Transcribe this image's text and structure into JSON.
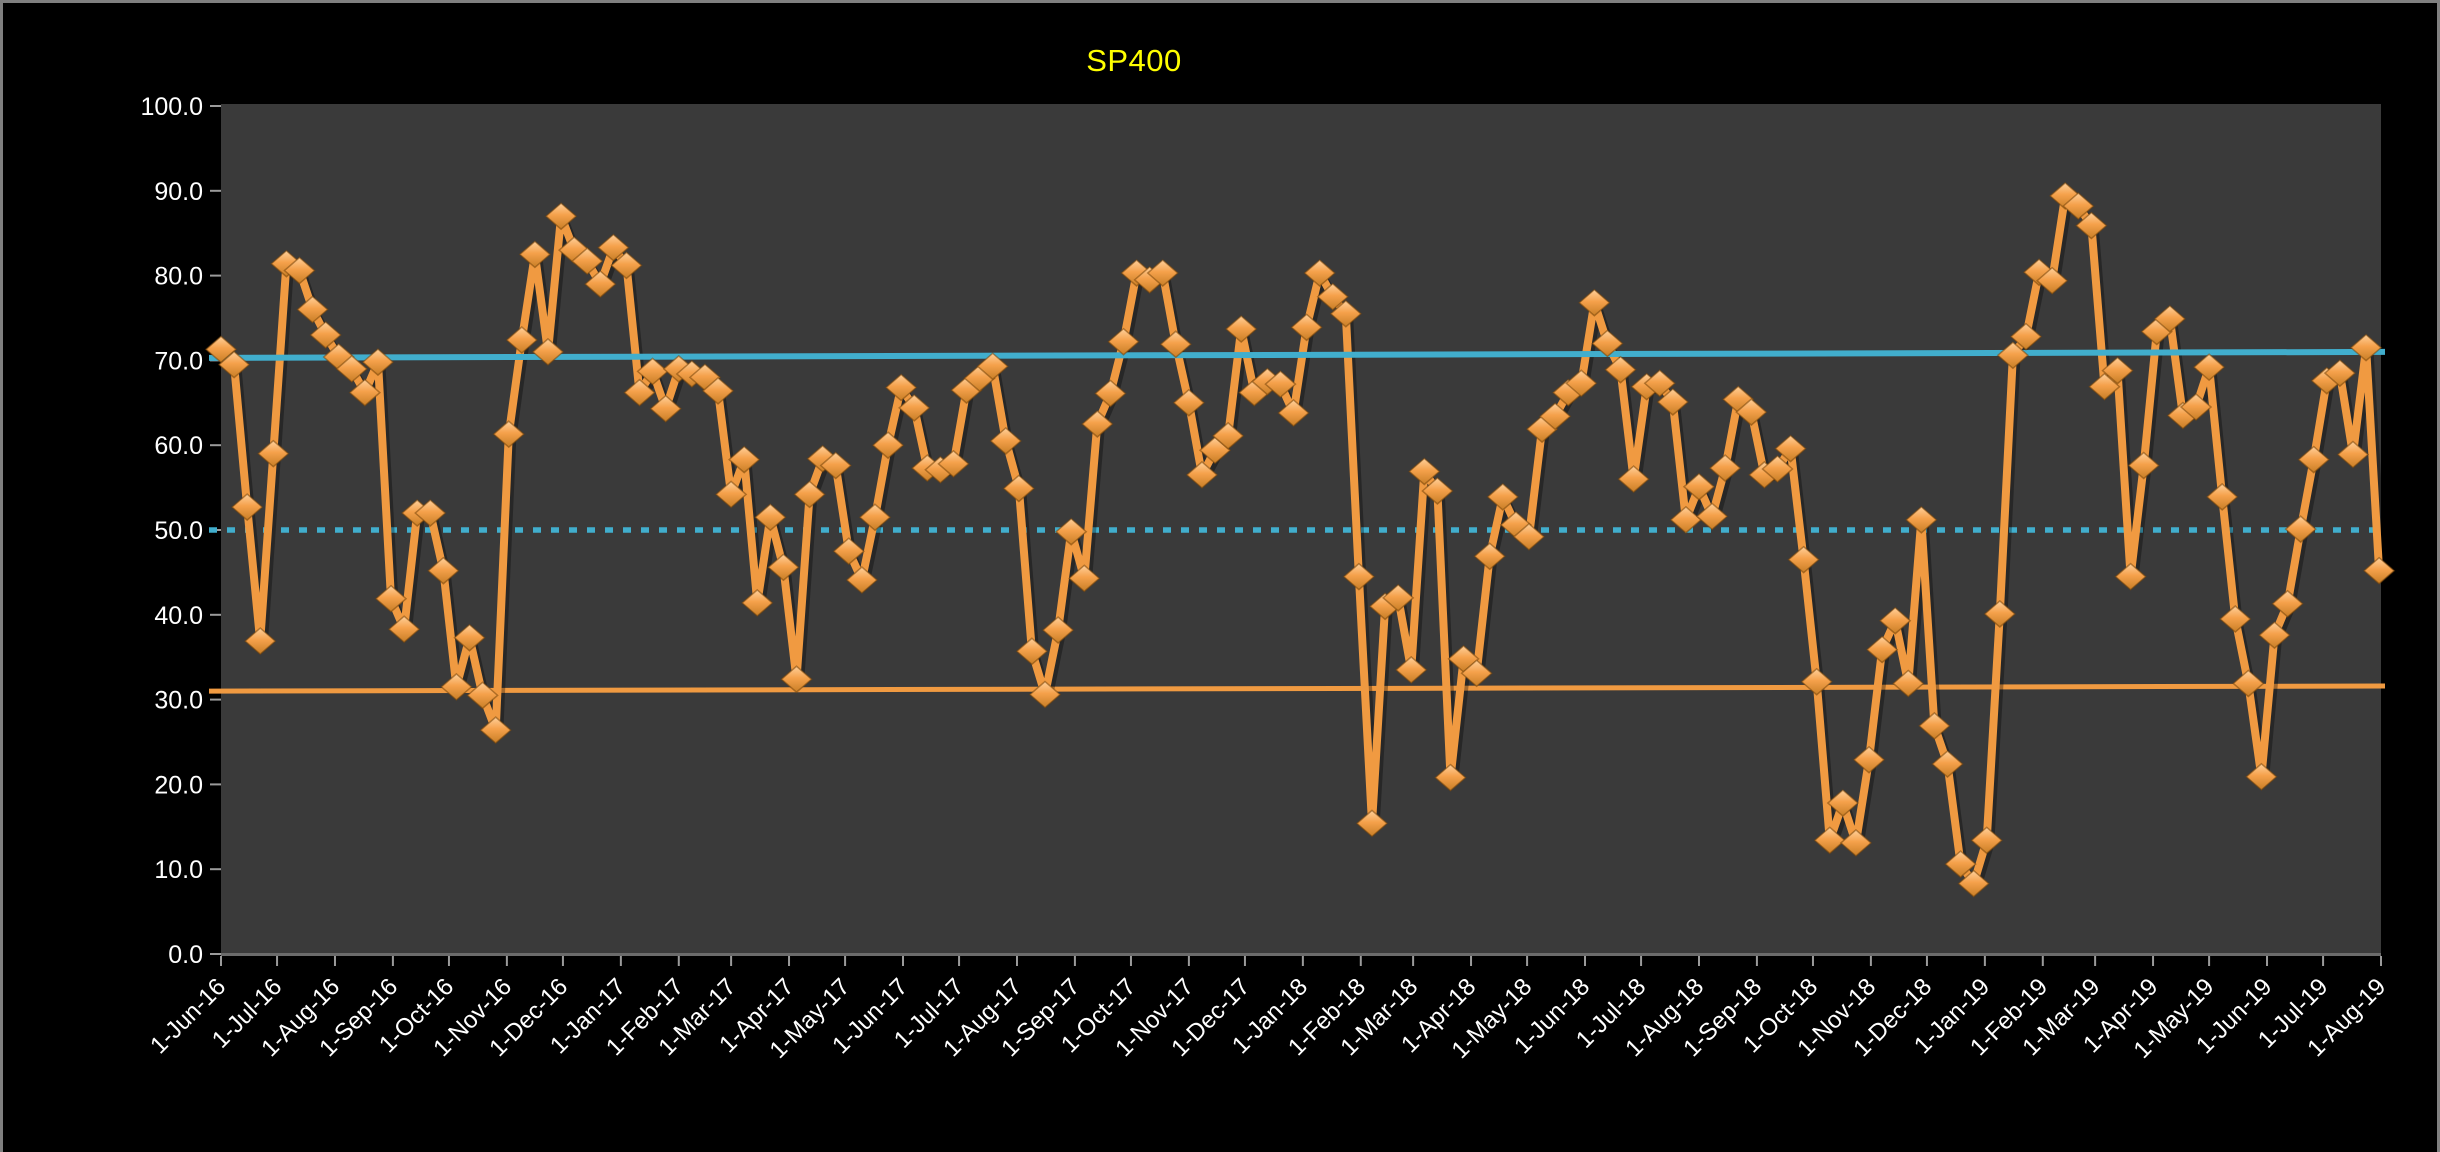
{
  "chart_data": {
    "type": "line",
    "title": "SP400",
    "title_color": "#FFFF00",
    "background_color": "#000000",
    "plot_background_color": "#3A3A3A",
    "axis_text_color": "#FFFFFF",
    "tick_mark_color": "#9B9B9B",
    "axis_line_color": "#6B6B6B",
    "grid": "off",
    "legend": "none",
    "ylim": [
      0,
      100
    ],
    "y_tick_interval": 10,
    "y_tick_labels": [
      "100.0",
      "90.0",
      "80.0",
      "70.0",
      "60.0",
      "50.0",
      "40.0",
      "30.0",
      "20.0",
      "10.0",
      "0.0"
    ],
    "x_unit": "weekly",
    "x_start": "1-Jun-16",
    "x_end": "1-Aug-19",
    "x_span_days": 1156,
    "x_tick_labels": [
      "1-Jun-16",
      "1-Jul-16",
      "1-Aug-16",
      "1-Sep-16",
      "1-Oct-16",
      "1-Nov-16",
      "1-Dec-16",
      "1-Jan-17",
      "1-Feb-17",
      "1-Mar-17",
      "1-Apr-17",
      "1-May-17",
      "1-Jun-17",
      "1-Jul-17",
      "1-Aug-17",
      "1-Sep-17",
      "1-Oct-17",
      "1-Nov-17",
      "1-Dec-17",
      "1-Jan-18",
      "1-Feb-18",
      "1-Mar-18",
      "1-Apr-18",
      "1-May-18",
      "1-Jun-18",
      "1-Jul-18",
      "1-Aug-18",
      "1-Sep-18",
      "1-Oct-18",
      "1-Nov-18",
      "1-Dec-18",
      "1-Jan-19",
      "1-Feb-19",
      "1-Mar-19",
      "1-Apr-19",
      "1-May-19",
      "1-Jun-19",
      "1-Jul-19",
      "1-Aug-19"
    ],
    "x_tick_day_offsets": [
      0,
      30,
      61,
      92,
      122,
      153,
      183,
      214,
      245,
      273,
      304,
      334,
      365,
      395,
      426,
      457,
      487,
      518,
      548,
      579,
      610,
      638,
      669,
      699,
      730,
      760,
      791,
      822,
      852,
      883,
      913,
      944,
      975,
      1003,
      1034,
      1064,
      1095,
      1125,
      1156
    ],
    "series": [
      {
        "name": "SP400",
        "color": "#F09A41",
        "marker": "diamond",
        "marker_colors": {
          "light": "#FFD09A",
          "mid": "#F5A14B",
          "dark": "#C87E26"
        },
        "values": [
          71.3,
          69.5,
          52.7,
          36.9,
          59.0,
          81.4,
          80.6,
          76.0,
          73.0,
          70.4,
          69.0,
          66.2,
          69.8,
          41.9,
          38.3,
          52.0,
          52.0,
          45.2,
          31.5,
          37.3,
          30.5,
          26.4,
          61.3,
          72.4,
          82.5,
          71.0,
          87.0,
          83.0,
          81.7,
          79.0,
          83.3,
          81.2,
          66.2,
          68.7,
          64.3,
          69.0,
          68.4,
          68.0,
          66.4,
          54.2,
          58.3,
          41.4,
          51.5,
          45.6,
          32.4,
          54.2,
          58.4,
          57.6,
          47.5,
          44.1,
          51.5,
          60.0,
          66.8,
          64.4,
          57.3,
          57.1,
          57.8,
          66.5,
          67.9,
          69.3,
          60.5,
          54.9,
          35.7,
          30.6,
          38.2,
          49.8,
          44.3,
          62.5,
          66.1,
          72.2,
          80.3,
          79.5,
          80.3,
          71.9,
          65.0,
          56.5,
          59.4,
          61.1,
          73.7,
          66.2,
          67.5,
          67.2,
          63.8,
          73.9,
          80.3,
          77.5,
          75.5,
          44.5,
          15.4,
          41.0,
          42.0,
          33.5,
          56.9,
          54.6,
          20.8,
          34.8,
          33.1,
          46.9,
          53.9,
          50.6,
          49.2,
          61.9,
          63.4,
          66.2,
          67.3,
          76.8,
          72.0,
          68.9,
          56.0,
          66.9,
          67.3,
          65.1,
          51.2,
          55.1,
          51.6,
          57.3,
          65.4,
          63.9,
          56.5,
          57.2,
          59.6,
          46.5,
          32.1,
          13.4,
          17.8,
          13.1,
          22.9,
          35.9,
          39.3,
          31.9,
          51.2,
          26.9,
          22.4,
          10.6,
          8.3,
          13.4,
          40.1,
          70.6,
          72.8,
          80.4,
          79.4,
          89.4,
          88.2,
          85.9,
          66.9,
          68.8,
          44.5,
          57.6,
          73.4,
          74.9,
          63.5,
          64.5,
          69.2,
          53.9,
          39.5,
          31.9,
          20.9,
          37.6,
          41.3,
          50.1,
          58.3,
          67.6,
          68.5,
          58.9,
          71.5,
          45.2
        ]
      }
    ],
    "reference_lines": [
      {
        "name": "upper-band",
        "style": "solid",
        "color": "#41AECD",
        "width": 6,
        "start_value": 70.3,
        "end_value": 71.0
      },
      {
        "name": "mid-dotted",
        "style": "dotted",
        "color": "#41AECD",
        "width": 5.5,
        "start_value": 50.0,
        "end_value": 50.0
      },
      {
        "name": "lower-band",
        "style": "solid",
        "color": "#F09A41",
        "width": 5,
        "start_value": 31.0,
        "end_value": 31.6
      }
    ]
  }
}
